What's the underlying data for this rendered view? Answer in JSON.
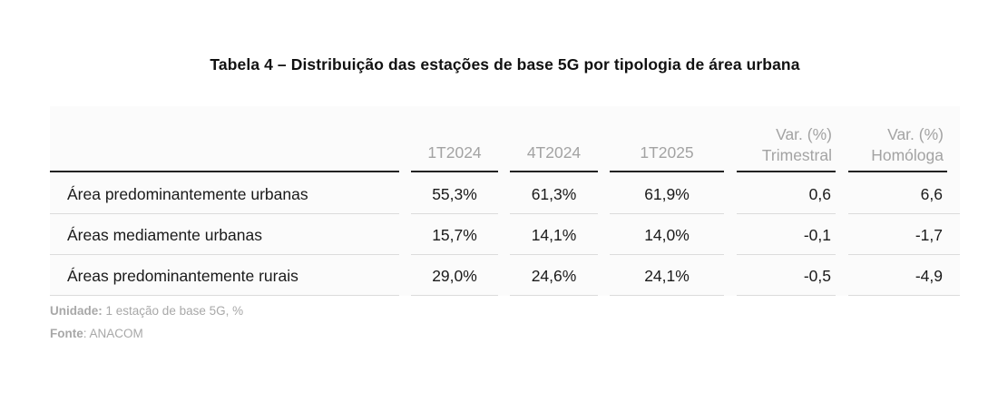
{
  "title": "Tabela 4 – Distribuição das estações de base 5G por tipologia de área urbana",
  "table": {
    "headers": [
      {
        "line1": "",
        "line2": ""
      },
      {
        "line1": "",
        "line2": "1T2024"
      },
      {
        "line1": "",
        "line2": "4T2024"
      },
      {
        "line1": "",
        "line2": "1T2025"
      },
      {
        "line1": "Var. (%)",
        "line2": "Trimestral"
      },
      {
        "line1": "Var. (%)",
        "line2": "Homóloga"
      }
    ],
    "rows": [
      {
        "label": "Área predominantemente urbanas",
        "values": [
          "55,3%",
          "61,3%",
          "61,9%",
          "0,6",
          "6,6"
        ]
      },
      {
        "label": "Áreas mediamente urbanas",
        "values": [
          "15,7%",
          "14,1%",
          "14,0%",
          "-0,1",
          "-1,7"
        ]
      },
      {
        "label": "Áreas predominantemente rurais",
        "values": [
          "29,0%",
          "24,6%",
          "24,1%",
          "-0,5",
          "-4,9"
        ]
      }
    ]
  },
  "footnotes": {
    "unit_label": "Unidade:",
    "unit_value": " 1 estação de base 5G, %",
    "source_label": "Fonte",
    "source_value": ": ANACOM"
  }
}
